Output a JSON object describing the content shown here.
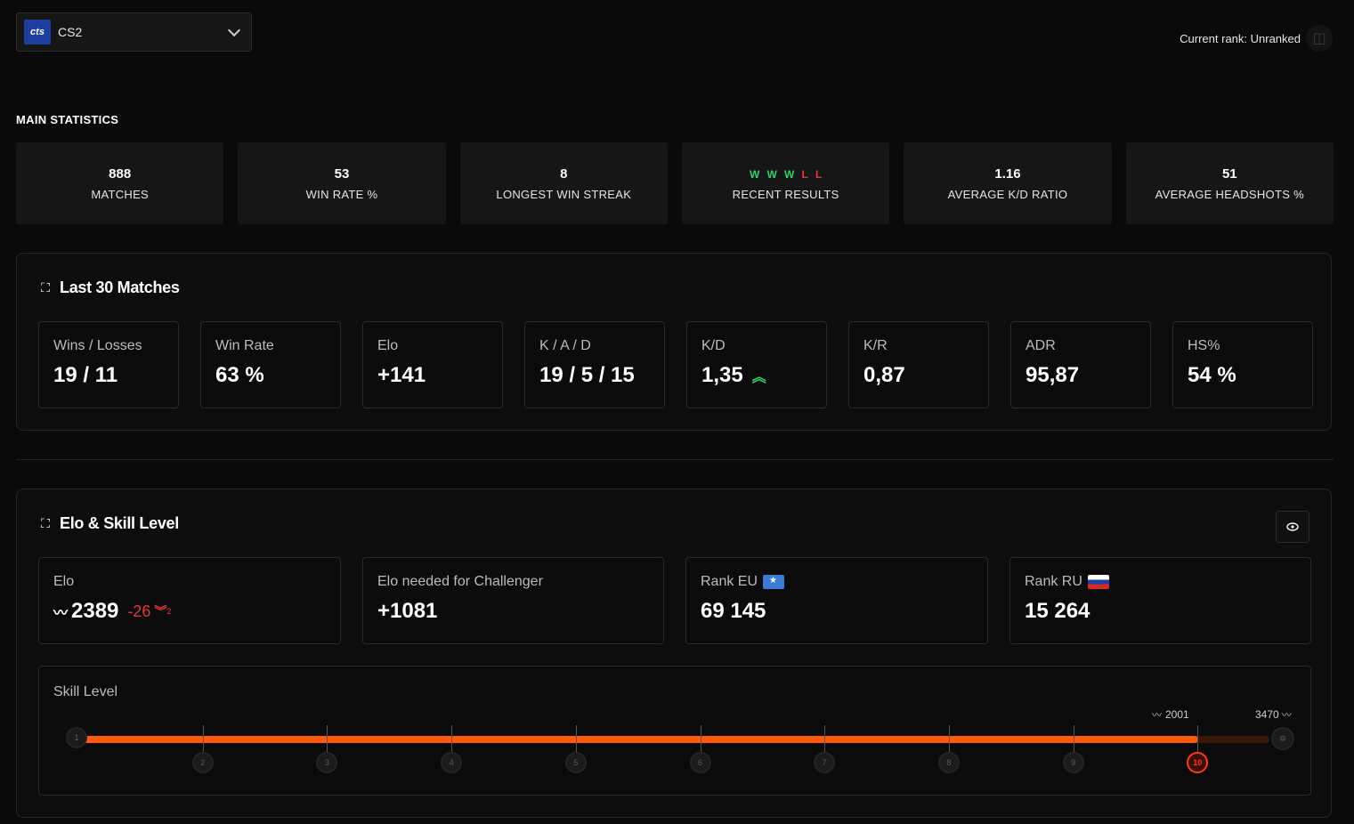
{
  "game_select": {
    "logo_text": "cts",
    "game": "CS2"
  },
  "rank": {
    "text": "Current rank: Unranked"
  },
  "main_statistics": {
    "title": "MAIN STATISTICS",
    "cards": [
      {
        "value": "888",
        "label": "MATCHES"
      },
      {
        "value": "53",
        "label": "WIN RATE %"
      },
      {
        "value": "8",
        "label": "LONGEST WIN STREAK"
      },
      {
        "value": "",
        "label": "RECENT RESULTS"
      },
      {
        "value": "1.16",
        "label": "AVERAGE K/D RATIO"
      },
      {
        "value": "51",
        "label": "AVERAGE HEADSHOTS %"
      }
    ],
    "recent_results": [
      "W",
      "W",
      "W",
      "L",
      "L"
    ]
  },
  "last30": {
    "title": "Last 30 Matches",
    "cards": [
      {
        "label": "Wins / Losses",
        "value": "19 / 11"
      },
      {
        "label": "Win Rate",
        "value": "63 %"
      },
      {
        "label": "Elo",
        "value": "+141"
      },
      {
        "label": "K / A / D",
        "value": "19 / 5 / 15"
      },
      {
        "label": "K/D",
        "value": "1,35"
      },
      {
        "label": "K/R",
        "value": "0,87"
      },
      {
        "label": "ADR",
        "value": "95,87"
      },
      {
        "label": "HS%",
        "value": "54 %"
      }
    ]
  },
  "elo_skill": {
    "title": "Elo & Skill Level",
    "elo": {
      "label": "Elo",
      "value": "2389",
      "delta": "-26",
      "delta_sub": "2"
    },
    "challenger": {
      "label": "Elo needed for Challenger",
      "value": "+1081"
    },
    "rank_eu": {
      "label": "Rank EU",
      "value": "69 145"
    },
    "rank_ru": {
      "label": "Rank RU",
      "value": "15 264"
    },
    "skill": {
      "label": "Skill Level",
      "levels": [
        "1",
        "2",
        "3",
        "4",
        "5",
        "6",
        "7",
        "8",
        "9",
        "10"
      ],
      "current_level": "10",
      "level10_min": "2001",
      "max": "3470",
      "progress_fraction": 0.94
    }
  },
  "colors": {
    "accent": "#ff5a0a",
    "win": "#2fd36e",
    "loss": "#e53935"
  }
}
